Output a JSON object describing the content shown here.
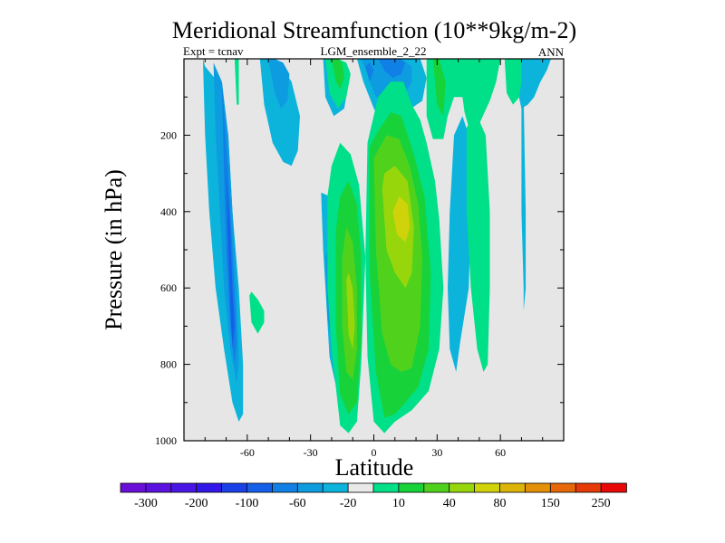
{
  "chart_data": {
    "type": "contour",
    "title": "Meridional Streamfunction (10**9kg/m-2)",
    "left_subtitle": "Expt = tcnav",
    "center_subtitle": "LGM_ensemble_2_22",
    "right_subtitle": "ANN",
    "xlabel": "Latitude",
    "ylabel": "Pressure (in hPa)",
    "xlim": [
      -90,
      90
    ],
    "ylim": [
      1000,
      0
    ],
    "x_ticks": [
      {
        "value": -60,
        "label": "-60"
      },
      {
        "value": -30,
        "label": "-30"
      },
      {
        "value": 0,
        "label": "0"
      },
      {
        "value": 30,
        "label": "30"
      },
      {
        "value": 60,
        "label": "60"
      }
    ],
    "y_ticks": [
      {
        "value": 200,
        "label": "200"
      },
      {
        "value": 400,
        "label": "400"
      },
      {
        "value": 600,
        "label": "600"
      },
      {
        "value": 800,
        "label": "800"
      },
      {
        "value": 1000,
        "label": "1000"
      }
    ],
    "colorbar": {
      "colors": [
        "#6a0fd8",
        "#5a12e0",
        "#4a16e6",
        "#3218e8",
        "#1a40e8",
        "#1560e8",
        "#1080e6",
        "#0e9ce0",
        "#0cb4dc",
        "#e9e9e9",
        "#00e089",
        "#18d23a",
        "#50d21c",
        "#98d60c",
        "#d0d20a",
        "#dcb40a",
        "#e49008",
        "#e66808",
        "#e63a08",
        "#e80808"
      ],
      "labels": [
        "-300",
        "-200",
        "-100",
        "-60",
        "-20",
        "10",
        "40",
        "80",
        "150",
        "250"
      ]
    },
    "regions": [
      {
        "level": 1,
        "name": "sh-cell-outer",
        "lat": [
          -81,
          -80,
          -78,
          -75,
          -71,
          -67,
          -64,
          -62,
          -62,
          -64,
          -67,
          -69,
          -72,
          -74,
          -77,
          -80,
          -81
        ],
        "p": [
          0,
          200,
          400,
          600,
          760,
          900,
          950,
          930,
          800,
          600,
          400,
          200,
          100,
          60,
          40,
          20,
          0
        ]
      },
      {
        "level": 2,
        "name": "sh-cell-mid",
        "lat": [
          -76,
          -75,
          -73,
          -71,
          -68,
          -65,
          -64,
          -65,
          -67,
          -69,
          -72,
          -76
        ],
        "p": [
          10,
          200,
          400,
          600,
          760,
          850,
          800,
          600,
          400,
          200,
          60,
          10
        ]
      },
      {
        "level": 3,
        "name": "sh-cell-core",
        "lat": [
          -72,
          -71,
          -70,
          -68,
          -66,
          -65,
          -67,
          -69,
          -72
        ],
        "p": [
          60,
          300,
          500,
          700,
          800,
          740,
          500,
          300,
          60
        ]
      },
      {
        "level": 4,
        "name": "sh-cell-inner",
        "lat": [
          -70,
          -69,
          -68,
          -67,
          -66,
          -67,
          -68,
          -70
        ],
        "p": [
          300,
          500,
          650,
          760,
          700,
          600,
          450,
          300
        ]
      },
      {
        "level": 1,
        "name": "upper-left-arch",
        "lat": [
          -54,
          -52,
          -48,
          -43,
          -39,
          -36,
          -35,
          -39,
          -44,
          -50,
          -54
        ],
        "p": [
          0,
          120,
          220,
          270,
          280,
          240,
          150,
          60,
          20,
          0,
          0
        ]
      },
      {
        "level": 2,
        "name": "upper-left-arch-core",
        "lat": [
          -50,
          -47,
          -44,
          -41,
          -40,
          -43,
          -47,
          -50
        ],
        "p": [
          0,
          90,
          130,
          110,
          40,
          10,
          0,
          0
        ]
      },
      {
        "level": 1,
        "name": "trop-south-outer",
        "lat": [
          -25,
          -24,
          -21,
          -17,
          -14,
          -13,
          -14,
          -17,
          -21,
          -25
        ],
        "p": [
          350,
          500,
          780,
          880,
          860,
          700,
          500,
          390,
          360,
          350
        ]
      },
      {
        "level": 2,
        "name": "trop-south-inner",
        "lat": [
          -23,
          -22,
          -19,
          -17,
          -15,
          -16,
          -18,
          -21,
          -23
        ],
        "p": [
          520,
          680,
          760,
          740,
          620,
          520,
          480,
          490,
          520
        ]
      },
      {
        "level": 1,
        "name": "upper-trop-south",
        "lat": [
          -24,
          -23,
          -19,
          -14,
          -12,
          -15,
          -19,
          -24
        ],
        "p": [
          0,
          100,
          150,
          130,
          60,
          10,
          0,
          0
        ]
      },
      {
        "level": 1,
        "name": "upper-trop-north",
        "lat": [
          -8,
          -5,
          0,
          5,
          10,
          15,
          23,
          25,
          22,
          15,
          8,
          0,
          -8
        ],
        "p": [
          0,
          60,
          130,
          180,
          190,
          140,
          110,
          50,
          0,
          0,
          0,
          0,
          0
        ]
      },
      {
        "level": 2,
        "name": "upper-trop-north-core",
        "lat": [
          -6,
          -3,
          0,
          4,
          9,
          14,
          18,
          18,
          13,
          6,
          0,
          -6
        ],
        "p": [
          0,
          40,
          90,
          120,
          125,
          100,
          60,
          20,
          0,
          0,
          0,
          0
        ]
      },
      {
        "level": 3,
        "name": "upper-trop-north-inner",
        "lat": [
          2,
          5,
          9,
          13,
          15,
          12,
          6,
          2
        ],
        "p": [
          0,
          30,
          50,
          40,
          10,
          0,
          0,
          0
        ]
      },
      {
        "level": 3,
        "name": "upper-trop-north-dot",
        "lat": [
          -4,
          -2,
          0,
          -2,
          -4
        ],
        "p": [
          20,
          60,
          30,
          10,
          20
        ]
      },
      {
        "level": 1,
        "name": "nh-mid-band",
        "lat": [
          36,
          35,
          36,
          39,
          41,
          45,
          46,
          45,
          42,
          38,
          36
        ],
        "p": [
          400,
          600,
          760,
          820,
          740,
          600,
          400,
          200,
          150,
          200,
          400
        ]
      },
      {
        "level": 1,
        "name": "nh-thin-strip",
        "lat": [
          69,
          70,
          70,
          71,
          71,
          72,
          72,
          71,
          70,
          69
        ],
        "p": [
          0,
          100,
          400,
          600,
          660,
          600,
          400,
          100,
          0,
          0
        ]
      },
      {
        "level": 1,
        "name": "nh-upper-right",
        "lat": [
          67,
          68,
          70,
          73,
          76,
          79,
          82,
          84,
          82,
          78,
          72,
          67
        ],
        "p": [
          0,
          80,
          130,
          120,
          100,
          60,
          30,
          0,
          0,
          0,
          0,
          0
        ]
      },
      {
        "level": -1,
        "name": "broad-north-outer",
        "lat": [
          -3,
          -4,
          -3,
          0,
          5,
          10,
          18,
          26,
          31,
          33,
          31,
          29,
          25,
          22,
          18,
          14,
          8,
          2,
          -3
        ],
        "p": [
          220,
          520,
          780,
          950,
          980,
          950,
          920,
          870,
          760,
          600,
          420,
          320,
          220,
          160,
          120,
          60,
          60,
          100,
          220
        ]
      },
      {
        "level": -2,
        "name": "broad-north-mid",
        "lat": [
          -2,
          -2,
          1,
          5,
          10,
          15,
          21,
          26,
          27,
          24,
          19,
          13,
          8,
          3,
          -2
        ],
        "p": [
          230,
          560,
          820,
          940,
          930,
          900,
          860,
          760,
          560,
          360,
          250,
          150,
          140,
          180,
          230
        ]
      },
      {
        "level": -3,
        "name": "broad-north-core",
        "lat": [
          0,
          1,
          4,
          8,
          13,
          18,
          22,
          23,
          21,
          17,
          12,
          6,
          0
        ],
        "p": [
          260,
          500,
          720,
          800,
          820,
          810,
          700,
          520,
          380,
          280,
          210,
          200,
          260
        ]
      },
      {
        "level": -4,
        "name": "broad-north-inner",
        "lat": [
          4,
          6,
          10,
          15,
          18,
          19,
          16,
          10,
          5,
          4
        ],
        "p": [
          340,
          500,
          560,
          600,
          560,
          440,
          320,
          280,
          300,
          340
        ]
      },
      {
        "level": -5,
        "name": "broad-north-peak",
        "lat": [
          9,
          11,
          15,
          17,
          16,
          12,
          9
        ],
        "p": [
          400,
          460,
          480,
          440,
          380,
          360,
          400
        ]
      },
      {
        "level": -1,
        "name": "south-trop-green-outer",
        "lat": [
          -22,
          -22,
          -20,
          -16,
          -12,
          -8,
          -6,
          -4,
          -7,
          -11,
          -16,
          -20,
          -22
        ],
        "p": [
          360,
          600,
          760,
          960,
          980,
          950,
          800,
          520,
          330,
          250,
          220,
          280,
          360
        ]
      },
      {
        "level": -2,
        "name": "south-trop-green-mid",
        "lat": [
          -18,
          -18,
          -16,
          -12,
          -8,
          -6,
          -6,
          -8,
          -12,
          -16,
          -18
        ],
        "p": [
          450,
          700,
          880,
          930,
          900,
          740,
          520,
          380,
          320,
          360,
          450
        ]
      },
      {
        "level": -3,
        "name": "south-trop-green-core",
        "lat": [
          -15,
          -15,
          -13,
          -10,
          -8,
          -8,
          -10,
          -13,
          -15
        ],
        "p": [
          520,
          700,
          820,
          840,
          760,
          600,
          480,
          440,
          520
        ]
      },
      {
        "level": -4,
        "name": "south-trop-green-inner",
        "lat": [
          -13,
          -12,
          -10,
          -9,
          -10,
          -12,
          -13
        ],
        "p": [
          580,
          720,
          760,
          700,
          600,
          560,
          580
        ]
      },
      {
        "level": -1,
        "name": "upper-green-left",
        "lat": [
          -66,
          -65,
          -64,
          -64,
          -65,
          -66
        ],
        "p": [
          0,
          120,
          120,
          0,
          0,
          0
        ]
      },
      {
        "level": -1,
        "name": "upper-green-trop",
        "lat": [
          -23,
          -21,
          -17,
          -13,
          -11,
          -13,
          -17,
          -21,
          -23
        ],
        "p": [
          0,
          90,
          130,
          100,
          40,
          10,
          0,
          0,
          0
        ]
      },
      {
        "level": -2,
        "name": "upper-green-trop-core",
        "lat": [
          -20,
          -18,
          -16,
          -14,
          -15,
          -17,
          -20
        ],
        "p": [
          0,
          60,
          80,
          50,
          10,
          0,
          0
        ]
      },
      {
        "level": -1,
        "name": "upper-green-nh",
        "lat": [
          25,
          25,
          28,
          33,
          35,
          38,
          42,
          43,
          45,
          50,
          55,
          58,
          60,
          58,
          54,
          48,
          42,
          35,
          28,
          25
        ],
        "p": [
          0,
          150,
          210,
          210,
          150,
          100,
          100,
          140,
          180,
          170,
          110,
          60,
          0,
          0,
          0,
          0,
          0,
          0,
          0,
          0
        ]
      },
      {
        "level": -2,
        "name": "upper-green-nh-core",
        "lat": [
          28,
          30,
          33,
          34,
          31,
          28
        ],
        "p": [
          0,
          120,
          150,
          60,
          0,
          0
        ]
      },
      {
        "level": -1,
        "name": "nh-green-column",
        "lat": [
          44,
          44,
          46,
          49,
          52,
          54,
          55,
          55,
          53,
          49,
          46,
          44
        ],
        "p": [
          180,
          400,
          600,
          760,
          820,
          800,
          600,
          400,
          200,
          150,
          160,
          180
        ]
      },
      {
        "level": -1,
        "name": "nh-green-right",
        "lat": [
          62,
          63,
          66,
          69,
          70,
          70,
          68,
          65,
          62
        ],
        "p": [
          0,
          90,
          120,
          100,
          60,
          0,
          0,
          0,
          0
        ]
      },
      {
        "level": -1,
        "name": "sh-green-blob",
        "lat": [
          -59,
          -58,
          -55,
          -52,
          -52,
          -55,
          -58,
          -59
        ],
        "p": [
          620,
          690,
          720,
          690,
          660,
          630,
          610,
          620
        ]
      }
    ]
  }
}
